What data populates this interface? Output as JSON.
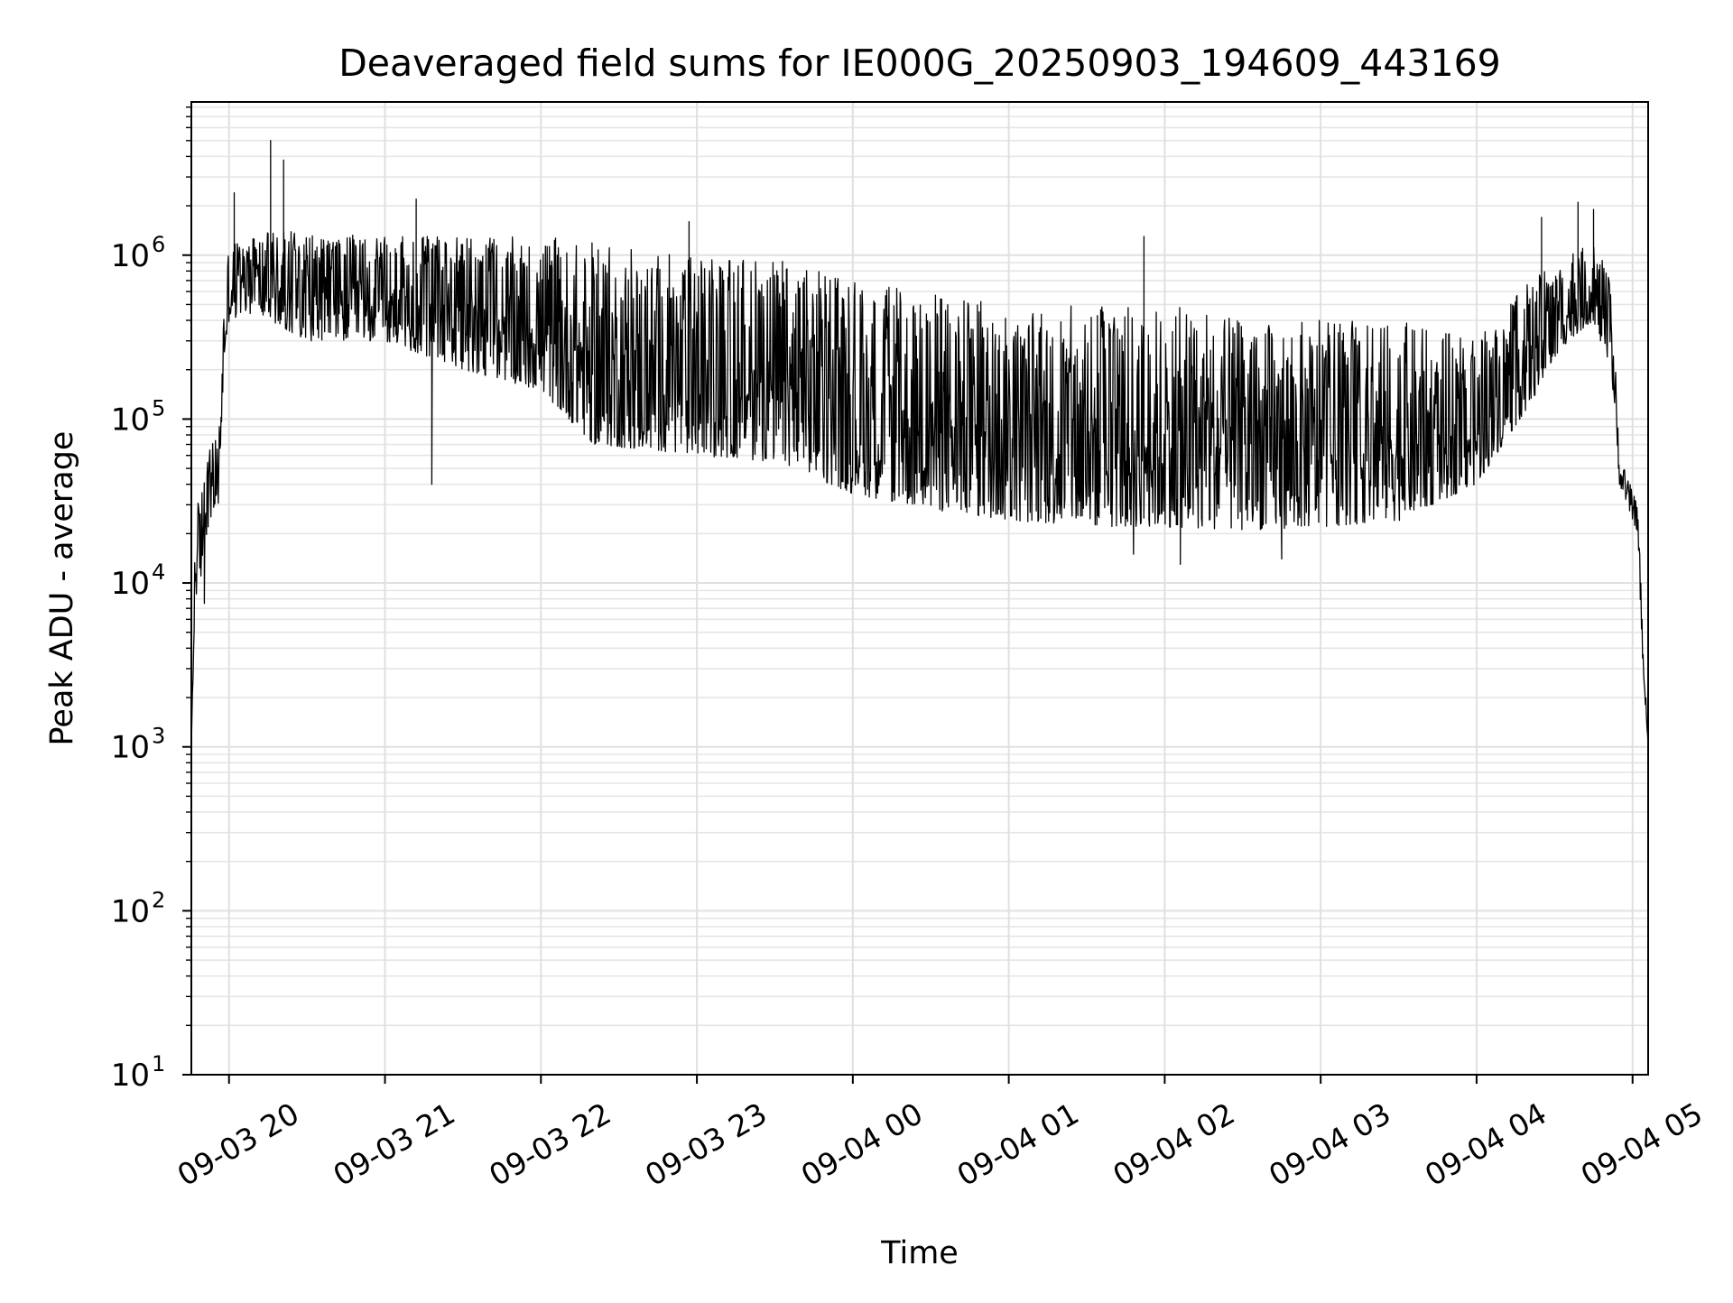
{
  "chart_data": {
    "type": "line",
    "title": "Deaveraged field sums for IE000G_20250903_194609_443169",
    "xlabel": "Time",
    "ylabel": "Peak ADU - average",
    "yscale": "log",
    "ylim": [
      10,
      8600000
    ],
    "xlim": [
      "09-03 19:45:30",
      "09-04 05:06:00"
    ],
    "grid": true,
    "line_color": "#000000",
    "x_ticks": [
      "09-03 20",
      "09-03 21",
      "09-03 22",
      "09-03 23",
      "09-04 00",
      "09-04 01",
      "09-04 02",
      "09-04 03",
      "09-04 04",
      "09-04 05"
    ],
    "x_tick_times": [
      "09-03 20:00",
      "09-03 21:00",
      "09-03 22:00",
      "09-03 23:00",
      "09-04 00:00",
      "09-04 01:00",
      "09-04 02:00",
      "09-04 03:00",
      "09-04 04:00",
      "09-04 05:00"
    ],
    "y_ticks": [
      {
        "value": 10,
        "base": "10",
        "exp": "1"
      },
      {
        "value": 100,
        "base": "10",
        "exp": "2"
      },
      {
        "value": 1000,
        "base": "10",
        "exp": "3"
      },
      {
        "value": 10000,
        "base": "10",
        "exp": "4"
      },
      {
        "value": 100000,
        "base": "10",
        "exp": "5"
      },
      {
        "value": 1000000,
        "base": "10",
        "exp": "6"
      }
    ],
    "series": [
      {
        "envelope_low": [
          {
            "t": "09-03 19:45:30",
            "v": 1000
          },
          {
            "t": "09-03 19:47:00",
            "v": 8000
          },
          {
            "t": "09-03 19:50:00",
            "v": 12000
          },
          {
            "t": "09-03 19:53:00",
            "v": 25000
          },
          {
            "t": "09-03 19:56:00",
            "v": 30000
          },
          {
            "t": "09-03 19:58:00",
            "v": 200000
          },
          {
            "t": "09-03 20:00:00",
            "v": 400000
          },
          {
            "t": "09-03 20:10:00",
            "v": 450000
          },
          {
            "t": "09-03 20:30:00",
            "v": 300000
          },
          {
            "t": "09-03 21:00:00",
            "v": 300000
          },
          {
            "t": "09-03 21:30:00",
            "v": 200000
          },
          {
            "t": "09-03 22:00:00",
            "v": 150000
          },
          {
            "t": "09-03 22:20:00",
            "v": 70000
          },
          {
            "t": "09-03 23:00:00",
            "v": 60000
          },
          {
            "t": "09-03 23:30:00",
            "v": 55000
          },
          {
            "t": "09-04 00:00:00",
            "v": 35000
          },
          {
            "t": "09-04 00:30:00",
            "v": 28000
          },
          {
            "t": "09-04 01:00:00",
            "v": 24000
          },
          {
            "t": "09-04 01:30:00",
            "v": 22000
          },
          {
            "t": "09-04 02:00:00",
            "v": 22000
          },
          {
            "t": "09-04 02:30:00",
            "v": 21000
          },
          {
            "t": "09-04 03:00:00",
            "v": 22000
          },
          {
            "t": "09-04 03:30:00",
            "v": 24000
          },
          {
            "t": "09-04 04:00:00",
            "v": 40000
          },
          {
            "t": "09-04 04:20:00",
            "v": 120000
          },
          {
            "t": "09-04 04:35:00",
            "v": 300000
          },
          {
            "t": "09-04 04:45:00",
            "v": 400000
          },
          {
            "t": "09-04 04:52:00",
            "v": 180000
          },
          {
            "t": "09-04 04:55:00",
            "v": 40000
          },
          {
            "t": "09-04 05:02:00",
            "v": 20000
          },
          {
            "t": "09-04 05:04:00",
            "v": 3000
          },
          {
            "t": "09-04 05:06:00",
            "v": 1000
          }
        ],
        "envelope_high": [
          {
            "t": "09-03 19:45:30",
            "v": 1000
          },
          {
            "t": "09-03 19:47:00",
            "v": 30000
          },
          {
            "t": "09-03 19:50:00",
            "v": 40000
          },
          {
            "t": "09-03 19:53:00",
            "v": 70000
          },
          {
            "t": "09-03 19:56:00",
            "v": 80000
          },
          {
            "t": "09-03 19:58:00",
            "v": 600000
          },
          {
            "t": "09-03 20:00:00",
            "v": 1300000
          },
          {
            "t": "09-03 20:10:00",
            "v": 1400000
          },
          {
            "t": "09-03 20:30:00",
            "v": 1400000
          },
          {
            "t": "09-03 21:00:00",
            "v": 1300000
          },
          {
            "t": "09-03 21:30:00",
            "v": 1300000
          },
          {
            "t": "09-03 22:00:00",
            "v": 1300000
          },
          {
            "t": "09-03 22:20:00",
            "v": 1200000
          },
          {
            "t": "09-03 23:00:00",
            "v": 1000000
          },
          {
            "t": "09-03 23:30:00",
            "v": 1000000
          },
          {
            "t": "09-04 00:00:00",
            "v": 700000
          },
          {
            "t": "09-04 00:30:00",
            "v": 600000
          },
          {
            "t": "09-04 01:00:00",
            "v": 500000
          },
          {
            "t": "09-04 01:30:00",
            "v": 500000
          },
          {
            "t": "09-04 02:00:00",
            "v": 500000
          },
          {
            "t": "09-04 02:30:00",
            "v": 400000
          },
          {
            "t": "09-04 03:00:00",
            "v": 400000
          },
          {
            "t": "09-04 03:30:00",
            "v": 400000
          },
          {
            "t": "09-04 04:00:00",
            "v": 300000
          },
          {
            "t": "09-04 04:20:00",
            "v": 700000
          },
          {
            "t": "09-04 04:35:00",
            "v": 1000000
          },
          {
            "t": "09-04 04:45:00",
            "v": 1200000
          },
          {
            "t": "09-04 04:52:00",
            "v": 700000
          },
          {
            "t": "09-04 04:55:00",
            "v": 60000
          },
          {
            "t": "09-04 05:02:00",
            "v": 30000
          },
          {
            "t": "09-04 05:04:00",
            "v": 5000
          },
          {
            "t": "09-04 05:06:00",
            "v": 1000
          }
        ],
        "spikes": [
          {
            "t": "09-03 20:02:00",
            "v": 2400000
          },
          {
            "t": "09-03 20:16:00",
            "v": 5000000
          },
          {
            "t": "09-03 20:21:00",
            "v": 3800000
          },
          {
            "t": "09-03 21:12:00",
            "v": 2200000
          },
          {
            "t": "09-03 22:57:00",
            "v": 1600000
          },
          {
            "t": "09-04 01:52:00",
            "v": 1300000
          },
          {
            "t": "09-04 04:25:00",
            "v": 1700000
          },
          {
            "t": "09-04 04:39:00",
            "v": 2100000
          },
          {
            "t": "09-04 04:45:00",
            "v": 1900000
          }
        ],
        "dips": [
          {
            "t": "09-03 19:50:30",
            "v": 7500
          },
          {
            "t": "09-03 21:18:00",
            "v": 40000
          },
          {
            "t": "09-04 01:48:00",
            "v": 15000
          },
          {
            "t": "09-04 02:06:00",
            "v": 13000
          },
          {
            "t": "09-04 02:45:00",
            "v": 14000
          }
        ]
      }
    ]
  }
}
